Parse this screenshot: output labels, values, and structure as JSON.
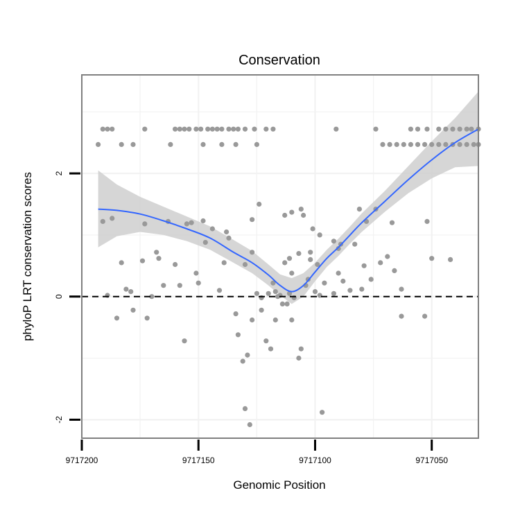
{
  "chart_data": {
    "type": "scatter",
    "title": "Conservation",
    "xlabel": "Genomic Position",
    "ylabel": "phyloP LRT conservation scores",
    "x_reversed": true,
    "xlim": [
      9717200,
      9717030
    ],
    "ylim": [
      -2.3,
      3.6
    ],
    "x_ticks": [
      9717200,
      9717150,
      9717100,
      9717050
    ],
    "x_tick_labels": [
      "9717200",
      "9717150",
      "9717100",
      "9717050"
    ],
    "y_ticks": [
      -2,
      0,
      2
    ],
    "y_tick_labels": [
      "-2",
      "0",
      "2"
    ],
    "reference_line": {
      "y": 0,
      "style": "dashed"
    },
    "grid": true,
    "colors": {
      "points": "#999999",
      "smooth": "#3366ff",
      "band": "#cfcfcf",
      "frame": "#7f7f7f"
    },
    "points": [
      [
        9717193,
        2.47
      ],
      [
        9717191,
        2.72
      ],
      [
        9717189,
        2.72
      ],
      [
        9717187,
        2.72
      ],
      [
        9717183,
        2.47
      ],
      [
        9717178,
        2.47
      ],
      [
        9717173,
        2.72
      ],
      [
        9717162,
        2.47
      ],
      [
        9717160,
        2.72
      ],
      [
        9717158,
        2.72
      ],
      [
        9717156,
        2.72
      ],
      [
        9717154,
        2.72
      ],
      [
        9717151,
        2.72
      ],
      [
        9717149,
        2.72
      ],
      [
        9717146,
        2.72
      ],
      [
        9717144,
        2.72
      ],
      [
        9717142,
        2.72
      ],
      [
        9717140,
        2.72
      ],
      [
        9717137,
        2.72
      ],
      [
        9717135,
        2.72
      ],
      [
        9717133,
        2.72
      ],
      [
        9717130,
        2.72
      ],
      [
        9717126,
        2.72
      ],
      [
        9717121,
        2.72
      ],
      [
        9717118,
        2.72
      ],
      [
        9717148,
        2.47
      ],
      [
        9717140,
        2.47
      ],
      [
        9717134,
        2.47
      ],
      [
        9717125,
        2.47
      ],
      [
        9717091,
        2.72
      ],
      [
        9717074,
        2.72
      ],
      [
        9717071,
        2.47
      ],
      [
        9717068,
        2.47
      ],
      [
        9717065,
        2.47
      ],
      [
        9717062,
        2.47
      ],
      [
        9717059,
        2.47
      ],
      [
        9717056,
        2.47
      ],
      [
        9717053,
        2.47
      ],
      [
        9717050,
        2.47
      ],
      [
        9717047,
        2.47
      ],
      [
        9717044,
        2.47
      ],
      [
        9717041,
        2.47
      ],
      [
        9717038,
        2.47
      ],
      [
        9717035,
        2.47
      ],
      [
        9717032,
        2.47
      ],
      [
        9717030,
        2.47
      ],
      [
        9717059,
        2.72
      ],
      [
        9717056,
        2.72
      ],
      [
        9717052,
        2.72
      ],
      [
        9717047,
        2.72
      ],
      [
        9717044,
        2.72
      ],
      [
        9717041,
        2.72
      ],
      [
        9717038,
        2.72
      ],
      [
        9717035,
        2.72
      ],
      [
        9717033,
        2.72
      ],
      [
        9717030,
        2.72
      ],
      [
        9717191,
        1.22
      ],
      [
        9717187,
        1.27
      ],
      [
        9717173,
        1.18
      ],
      [
        9717163,
        1.22
      ],
      [
        9717155,
        1.18
      ],
      [
        9717153,
        1.2
      ],
      [
        9717148,
        1.23
      ],
      [
        9717144,
        1.1
      ],
      [
        9717138,
        1.05
      ],
      [
        9717127,
        1.25
      ],
      [
        9717124,
        1.5
      ],
      [
        9717113,
        1.32
      ],
      [
        9717110,
        1.37
      ],
      [
        9717106,
        1.42
      ],
      [
        9717105,
        1.32
      ],
      [
        9717101,
        1.1
      ],
      [
        9717098,
        1.0
      ],
      [
        9717092,
        0.9
      ],
      [
        9717089,
        0.85
      ],
      [
        9717081,
        1.42
      ],
      [
        9717078,
        1.22
      ],
      [
        9717074,
        1.42
      ],
      [
        9717067,
        1.2
      ],
      [
        9717052,
        1.22
      ],
      [
        9717189,
        0.02
      ],
      [
        9717185,
        -0.35
      ],
      [
        9717183,
        0.55
      ],
      [
        9717181,
        0.12
      ],
      [
        9717179,
        0.08
      ],
      [
        9717178,
        -0.22
      ],
      [
        9717174,
        0.58
      ],
      [
        9717172,
        -0.35
      ],
      [
        9717170,
        0.0
      ],
      [
        9717168,
        0.72
      ],
      [
        9717167,
        0.62
      ],
      [
        9717165,
        0.18
      ],
      [
        9717160,
        0.52
      ],
      [
        9717158,
        0.18
      ],
      [
        9717156,
        -0.72
      ],
      [
        9717151,
        0.38
      ],
      [
        9717150,
        0.22
      ],
      [
        9717147,
        0.88
      ],
      [
        9717141,
        0.1
      ],
      [
        9717139,
        0.55
      ],
      [
        9717137,
        0.95
      ],
      [
        9717134,
        -0.28
      ],
      [
        9717130,
        0.52
      ],
      [
        9717127,
        0.72
      ],
      [
        9717123,
        -0.22
      ],
      [
        9717120,
        0.05
      ],
      [
        9717117,
        0.08
      ],
      [
        9717115,
        0.02
      ],
      [
        9717113,
        0.55
      ],
      [
        9717111,
        0.62
      ],
      [
        9717110,
        0.38
      ],
      [
        9717107,
        0.7
      ],
      [
        9717104,
        0.18
      ],
      [
        9717103,
        0.28
      ],
      [
        9717100,
        0.08
      ],
      [
        9717098,
        0.02
      ],
      [
        9717096,
        0.22
      ],
      [
        9717092,
        0.05
      ],
      [
        9717090,
        0.38
      ],
      [
        9717088,
        0.25
      ],
      [
        9717085,
        0.1
      ],
      [
        9717079,
        0.5
      ],
      [
        9717076,
        0.28
      ],
      [
        9717072,
        0.55
      ],
      [
        9717069,
        0.65
      ],
      [
        9717066,
        0.42
      ],
      [
        9717063,
        0.12
      ],
      [
        9717050,
        0.62
      ],
      [
        9717042,
        0.6
      ],
      [
        9717133,
        -0.62
      ],
      [
        9717131,
        -1.05
      ],
      [
        9717129,
        -0.95
      ],
      [
        9717127,
        -0.38
      ],
      [
        9717125,
        0.05
      ],
      [
        9717123,
        -0.02
      ],
      [
        9717121,
        -0.72
      ],
      [
        9717119,
        -0.85
      ],
      [
        9717118,
        0.22
      ],
      [
        9717117,
        -0.38
      ],
      [
        9717116,
        0.0
      ],
      [
        9717114,
        -0.12
      ],
      [
        9717112,
        -0.12
      ],
      [
        9717111,
        0.05
      ],
      [
        9717109,
        -0.02
      ],
      [
        9717107,
        -1.0
      ],
      [
        9717106,
        -0.85
      ],
      [
        9717102,
        0.6
      ],
      [
        9717130,
        -1.82
      ],
      [
        9717128,
        -2.08
      ],
      [
        9717110,
        -0.38
      ],
      [
        9717102,
        0.72
      ],
      [
        9717099,
        0.52
      ],
      [
        9717097,
        -1.88
      ],
      [
        9717090,
        0.78
      ],
      [
        9717083,
        0.85
      ],
      [
        9717080,
        0.12
      ],
      [
        9717063,
        -0.32
      ],
      [
        9717053,
        -0.32
      ]
    ],
    "smooth": {
      "x": [
        9717193,
        9717185,
        9717175,
        9717165,
        9717155,
        9717145,
        9717135,
        9717127,
        9717120,
        9717115,
        9717110,
        9717105,
        9717100,
        9717095,
        9717090,
        9717085,
        9717080,
        9717070,
        9717060,
        9717050,
        9717040,
        9717030
      ],
      "y": [
        1.42,
        1.4,
        1.34,
        1.23,
        1.1,
        0.95,
        0.72,
        0.55,
        0.35,
        0.18,
        0.08,
        0.18,
        0.4,
        0.62,
        0.8,
        1.0,
        1.2,
        1.55,
        1.9,
        2.22,
        2.5,
        2.72
      ],
      "lower": [
        0.8,
        0.98,
        1.05,
        1.0,
        0.9,
        0.76,
        0.55,
        0.38,
        0.18,
        0.02,
        -0.12,
        0.0,
        0.25,
        0.48,
        0.66,
        0.86,
        1.05,
        1.38,
        1.68,
        1.92,
        2.1,
        2.12
      ],
      "upper": [
        2.05,
        1.82,
        1.62,
        1.46,
        1.3,
        1.14,
        0.92,
        0.74,
        0.52,
        0.36,
        0.3,
        0.38,
        0.55,
        0.76,
        0.94,
        1.14,
        1.35,
        1.72,
        2.12,
        2.52,
        2.9,
        3.33
      ]
    }
  }
}
